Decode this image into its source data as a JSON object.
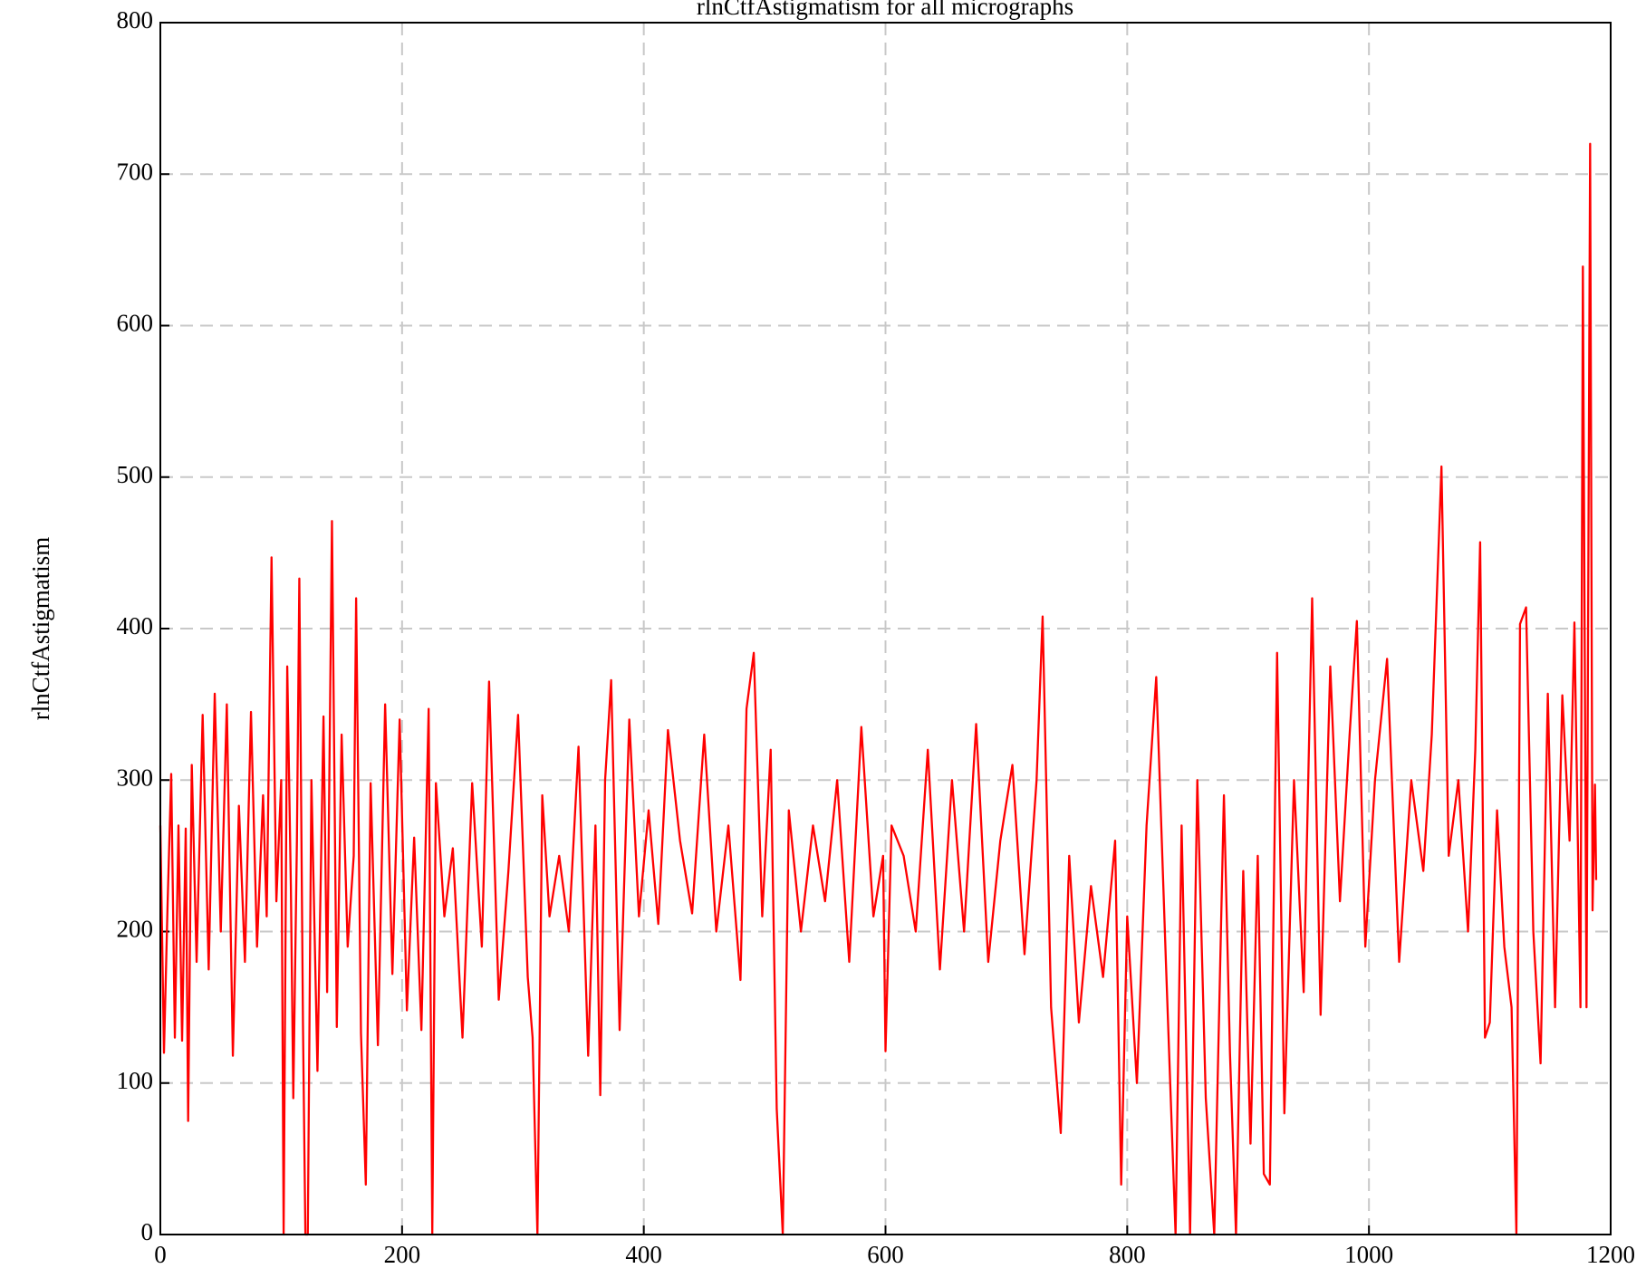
{
  "chart_data": {
    "type": "line",
    "title": "rlnCtfAstigmatism for all micrographs",
    "y_label": "rlnCtfAstigmatism",
    "xlim": [
      0,
      1200
    ],
    "xticks": [
      0,
      200,
      400,
      600,
      800,
      1000,
      1200
    ],
    "ylim": [
      0,
      800
    ],
    "yticks": [
      0,
      100,
      200,
      300,
      400,
      500,
      600,
      700,
      800
    ],
    "grid": true,
    "color": "#ff0000",
    "x": [
      0,
      3,
      6,
      9,
      12,
      15,
      18,
      21,
      23,
      26,
      30,
      35,
      40,
      45,
      50,
      55,
      60,
      65,
      70,
      75,
      80,
      85,
      88,
      92,
      96,
      100,
      102,
      105,
      108,
      110,
      113,
      115,
      118,
      120,
      122,
      125,
      130,
      135,
      138,
      142,
      146,
      150,
      155,
      160,
      162,
      166,
      170,
      174,
      180,
      186,
      192,
      198,
      204,
      210,
      216,
      222,
      225,
      228,
      235,
      242,
      250,
      258,
      266,
      272,
      280,
      288,
      296,
      304,
      308,
      312,
      316,
      322,
      330,
      338,
      346,
      354,
      360,
      364,
      368,
      373,
      380,
      388,
      396,
      404,
      412,
      420,
      430,
      440,
      450,
      460,
      470,
      480,
      485,
      491,
      498,
      505,
      510,
      515,
      520,
      530,
      540,
      550,
      560,
      570,
      580,
      590,
      598,
      600,
      605,
      615,
      625,
      635,
      645,
      655,
      665,
      675,
      685,
      695,
      705,
      715,
      725,
      730,
      737,
      745,
      752,
      760,
      770,
      780,
      790,
      795,
      800,
      808,
      816,
      824,
      832,
      840,
      845,
      852,
      858,
      865,
      872,
      880,
      885,
      890,
      896,
      902,
      908,
      913,
      918,
      924,
      930,
      938,
      946,
      953,
      960,
      968,
      976,
      984,
      990,
      997,
      1005,
      1015,
      1025,
      1035,
      1045,
      1052,
      1060,
      1066,
      1074,
      1082,
      1088,
      1092,
      1096,
      1100,
      1106,
      1112,
      1118,
      1122,
      1125,
      1130,
      1136,
      1142,
      1148,
      1154,
      1160,
      1166,
      1170,
      1175,
      1177,
      1180,
      1183,
      1185,
      1187,
      1188
    ],
    "values": [
      270,
      120,
      218,
      304,
      130,
      270,
      128,
      268,
      75,
      310,
      180,
      343,
      175,
      357,
      200,
      350,
      118,
      283,
      180,
      345,
      190,
      290,
      210,
      447,
      220,
      300,
      0,
      375,
      230,
      90,
      260,
      433,
      140,
      0,
      0,
      300,
      108,
      342,
      160,
      471,
      137,
      330,
      190,
      250,
      420,
      133,
      33,
      298,
      125,
      350,
      172,
      340,
      148,
      262,
      135,
      347,
      0,
      298,
      210,
      255,
      130,
      298,
      190,
      365,
      155,
      240,
      343,
      170,
      130,
      0,
      290,
      210,
      250,
      200,
      322,
      118,
      270,
      92,
      300,
      366,
      135,
      340,
      210,
      280,
      205,
      333,
      260,
      212,
      330,
      200,
      270,
      168,
      347,
      384,
      210,
      320,
      83,
      0,
      280,
      200,
      270,
      220,
      300,
      180,
      335,
      210,
      250,
      121,
      270,
      250,
      200,
      320,
      175,
      300,
      200,
      337,
      180,
      260,
      310,
      185,
      300,
      408,
      150,
      67,
      250,
      140,
      230,
      170,
      260,
      33,
      210,
      100,
      270,
      368,
      180,
      0,
      270,
      0,
      300,
      90,
      0,
      290,
      120,
      0,
      240,
      60,
      250,
      40,
      33,
      384,
      80,
      300,
      160,
      420,
      145,
      375,
      220,
      330,
      405,
      190,
      300,
      380,
      180,
      300,
      240,
      330,
      507,
      250,
      300,
      200,
      320,
      457,
      130,
      140,
      280,
      190,
      150,
      0,
      403,
      414,
      200,
      113,
      357,
      150,
      356,
      260,
      404,
      150,
      639,
      150,
      720,
      214,
      297,
      234
    ]
  }
}
